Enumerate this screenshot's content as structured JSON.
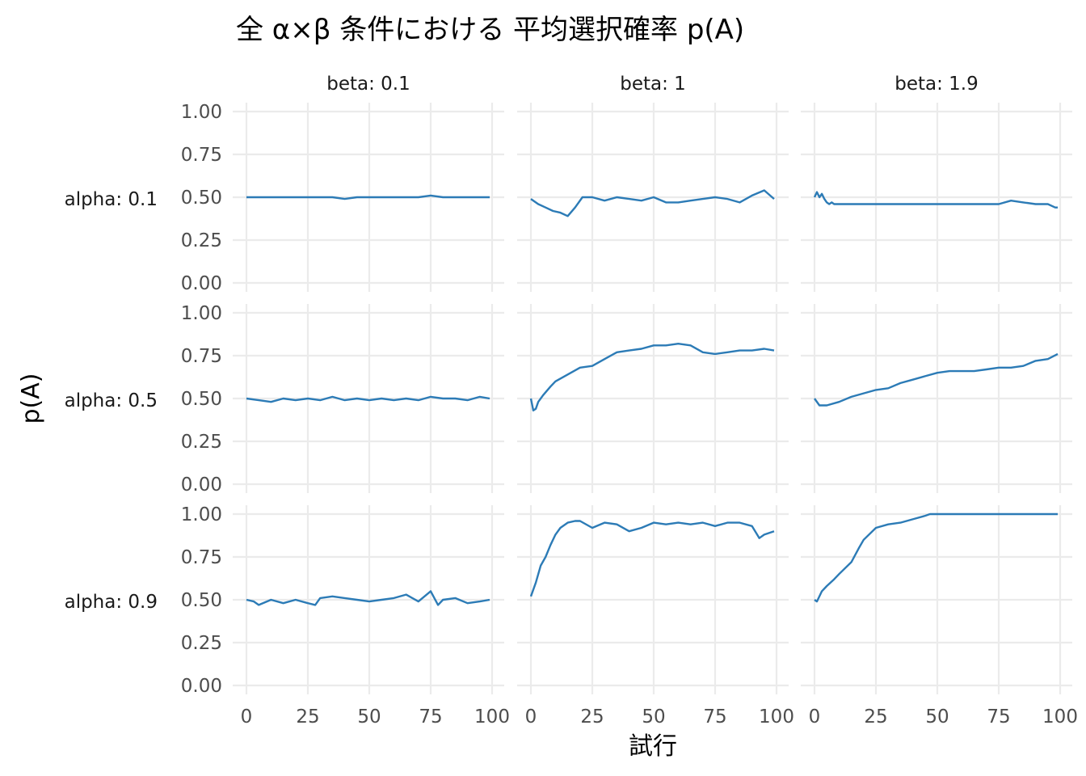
{
  "chart_data": {
    "type": "line",
    "title": "全 α×β 条件における 平均選択確率 p(A)",
    "xlabel": "試行",
    "ylabel": "p(A)",
    "xlim": [
      0,
      100
    ],
    "ylim": [
      0,
      1
    ],
    "x_ticks": [
      "0",
      "25",
      "50",
      "75",
      "100"
    ],
    "y_ticks": [
      "0.00",
      "0.25",
      "0.50",
      "0.75",
      "1.00"
    ],
    "column_labels": [
      "beta: 0.1",
      "beta: 1",
      "beta: 1.9"
    ],
    "row_labels": [
      "alpha: 0.1",
      "alpha: 0.5",
      "alpha: 0.9"
    ],
    "grid": true,
    "line_color": "#2c7bb6",
    "panels": [
      {
        "beta": "0.1",
        "alpha": "0.1",
        "x": [
          0,
          5,
          10,
          15,
          20,
          25,
          30,
          35,
          40,
          45,
          50,
          55,
          60,
          65,
          70,
          75,
          80,
          85,
          90,
          95,
          99
        ],
        "y": [
          0.5,
          0.5,
          0.5,
          0.5,
          0.5,
          0.5,
          0.5,
          0.5,
          0.49,
          0.5,
          0.5,
          0.5,
          0.5,
          0.5,
          0.5,
          0.51,
          0.5,
          0.5,
          0.5,
          0.5,
          0.5
        ]
      },
      {
        "beta": "1",
        "alpha": "0.1",
        "x": [
          0,
          3,
          6,
          9,
          12,
          15,
          18,
          21,
          25,
          30,
          35,
          40,
          45,
          50,
          55,
          60,
          65,
          70,
          75,
          80,
          85,
          90,
          95,
          99
        ],
        "y": [
          0.49,
          0.46,
          0.44,
          0.42,
          0.41,
          0.39,
          0.44,
          0.5,
          0.5,
          0.48,
          0.5,
          0.49,
          0.48,
          0.5,
          0.47,
          0.47,
          0.48,
          0.49,
          0.5,
          0.49,
          0.47,
          0.51,
          0.54,
          0.49
        ]
      },
      {
        "beta": "1.9",
        "alpha": "0.1",
        "x": [
          0,
          1,
          2,
          3,
          4,
          5,
          6,
          7,
          8,
          10,
          20,
          30,
          40,
          50,
          60,
          70,
          75,
          80,
          85,
          90,
          95,
          98,
          99
        ],
        "y": [
          0.5,
          0.53,
          0.5,
          0.52,
          0.49,
          0.47,
          0.46,
          0.47,
          0.46,
          0.46,
          0.46,
          0.46,
          0.46,
          0.46,
          0.46,
          0.46,
          0.46,
          0.48,
          0.47,
          0.46,
          0.46,
          0.44,
          0.44
        ]
      },
      {
        "beta": "0.1",
        "alpha": "0.5",
        "x": [
          0,
          5,
          10,
          15,
          20,
          25,
          30,
          35,
          40,
          45,
          50,
          55,
          60,
          65,
          70,
          75,
          80,
          85,
          90,
          95,
          99
        ],
        "y": [
          0.5,
          0.49,
          0.48,
          0.5,
          0.49,
          0.5,
          0.49,
          0.51,
          0.49,
          0.5,
          0.49,
          0.5,
          0.49,
          0.5,
          0.49,
          0.51,
          0.5,
          0.5,
          0.49,
          0.51,
          0.5
        ]
      },
      {
        "beta": "1",
        "alpha": "0.5",
        "x": [
          0,
          1,
          2,
          3,
          5,
          8,
          10,
          15,
          20,
          25,
          30,
          35,
          40,
          45,
          50,
          55,
          60,
          65,
          70,
          75,
          80,
          85,
          90,
          95,
          99
        ],
        "y": [
          0.5,
          0.43,
          0.44,
          0.48,
          0.52,
          0.57,
          0.6,
          0.64,
          0.68,
          0.69,
          0.73,
          0.77,
          0.78,
          0.79,
          0.81,
          0.81,
          0.82,
          0.81,
          0.77,
          0.76,
          0.77,
          0.78,
          0.78,
          0.79,
          0.78
        ]
      },
      {
        "beta": "1.9",
        "alpha": "0.5",
        "x": [
          0,
          2,
          5,
          10,
          15,
          20,
          25,
          30,
          35,
          40,
          45,
          50,
          55,
          60,
          65,
          70,
          75,
          80,
          85,
          90,
          95,
          99
        ],
        "y": [
          0.5,
          0.46,
          0.46,
          0.48,
          0.51,
          0.53,
          0.55,
          0.56,
          0.59,
          0.61,
          0.63,
          0.65,
          0.66,
          0.66,
          0.66,
          0.67,
          0.68,
          0.68,
          0.69,
          0.72,
          0.73,
          0.76
        ]
      },
      {
        "beta": "0.1",
        "alpha": "0.9",
        "x": [
          0,
          3,
          5,
          10,
          15,
          20,
          25,
          28,
          30,
          35,
          40,
          45,
          50,
          55,
          60,
          65,
          70,
          75,
          78,
          80,
          85,
          90,
          95,
          99
        ],
        "y": [
          0.5,
          0.49,
          0.47,
          0.5,
          0.48,
          0.5,
          0.48,
          0.47,
          0.51,
          0.52,
          0.51,
          0.5,
          0.49,
          0.5,
          0.51,
          0.53,
          0.49,
          0.55,
          0.47,
          0.5,
          0.51,
          0.48,
          0.49,
          0.5
        ]
      },
      {
        "beta": "1",
        "alpha": "0.9",
        "x": [
          0,
          2,
          4,
          6,
          8,
          10,
          12,
          15,
          18,
          20,
          25,
          30,
          35,
          40,
          45,
          50,
          55,
          60,
          65,
          70,
          75,
          80,
          85,
          90,
          93,
          95,
          99
        ],
        "y": [
          0.52,
          0.6,
          0.7,
          0.75,
          0.82,
          0.88,
          0.92,
          0.95,
          0.96,
          0.96,
          0.92,
          0.95,
          0.94,
          0.9,
          0.92,
          0.95,
          0.94,
          0.95,
          0.94,
          0.95,
          0.93,
          0.95,
          0.95,
          0.93,
          0.86,
          0.88,
          0.9
        ]
      },
      {
        "beta": "1.9",
        "alpha": "0.9",
        "x": [
          0,
          1,
          3,
          5,
          8,
          10,
          15,
          18,
          20,
          25,
          30,
          35,
          40,
          45,
          47,
          50,
          60,
          70,
          80,
          90,
          99
        ],
        "y": [
          0.5,
          0.49,
          0.55,
          0.58,
          0.62,
          0.65,
          0.72,
          0.8,
          0.85,
          0.92,
          0.94,
          0.95,
          0.97,
          0.99,
          1.0,
          1.0,
          1.0,
          1.0,
          1.0,
          1.0,
          1.0
        ]
      }
    ]
  }
}
